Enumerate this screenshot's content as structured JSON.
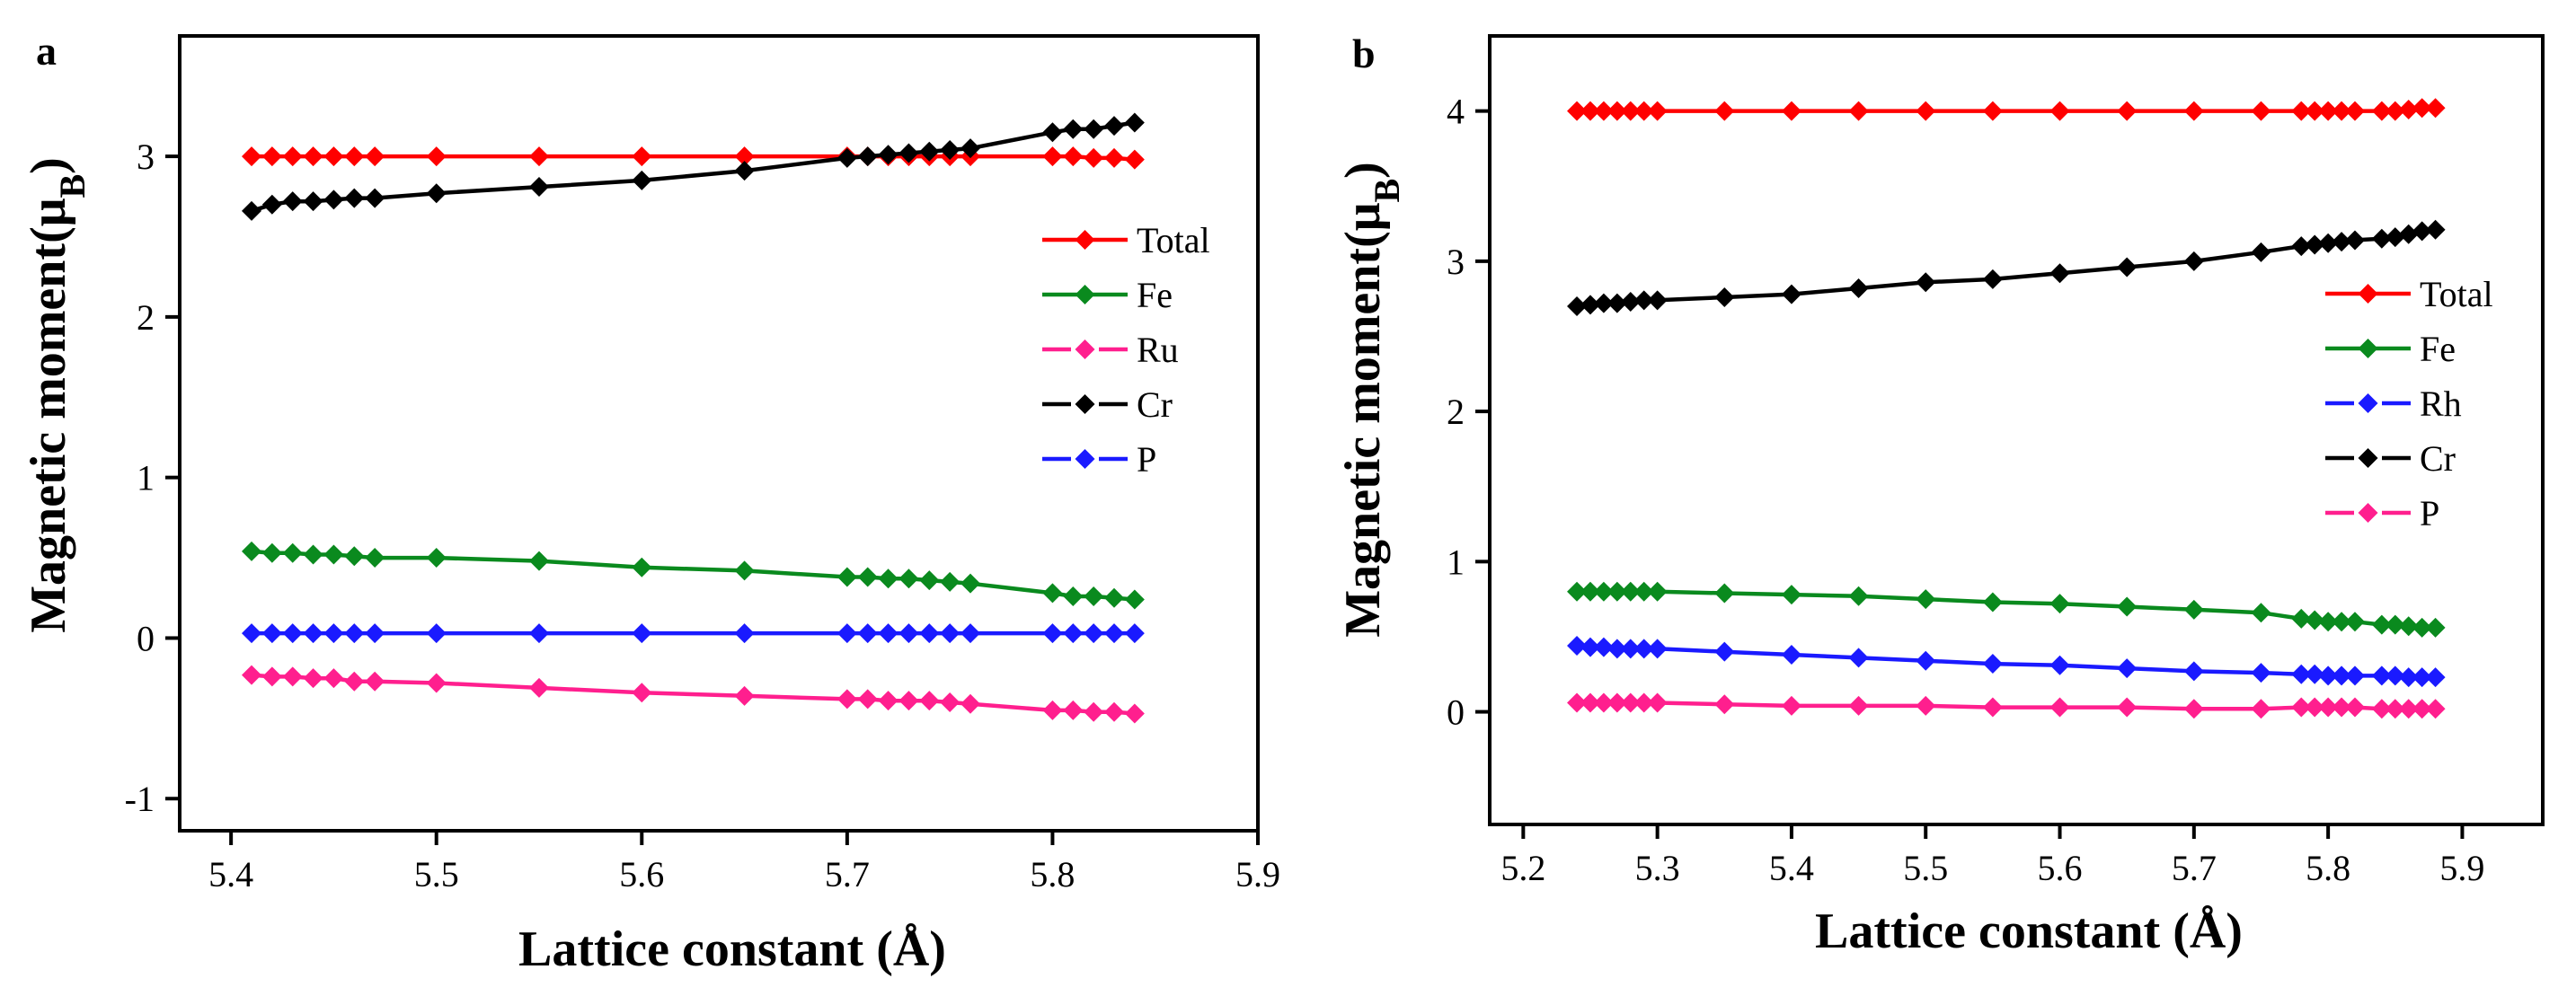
{
  "chart_data": [
    {
      "type": "line",
      "panel_label": "a",
      "xlabel": "Lattice constant (Å)",
      "ylabel_main": "Magnetic moment(μ",
      "ylabel_sub": "B",
      "ylabel_close": ")",
      "xlim": [
        5.375,
        5.9
      ],
      "ylim": [
        -1.2,
        3.75
      ],
      "x_ticks": [
        5.4,
        5.5,
        5.6,
        5.7,
        5.8,
        5.9
      ],
      "x_tick_labels": [
        "5.4",
        "5.5",
        "5.6",
        "5.7",
        "5.8",
        "5.9"
      ],
      "y_ticks": [
        -1,
        0,
        1,
        2,
        3
      ],
      "y_tick_labels": [
        "-1",
        "0",
        "1",
        "2",
        "3"
      ],
      "grid": false,
      "legend_position": "right",
      "x": [
        5.41,
        5.42,
        5.43,
        5.44,
        5.45,
        5.46,
        5.47,
        5.5,
        5.55,
        5.6,
        5.65,
        5.7,
        5.71,
        5.72,
        5.73,
        5.74,
        5.75,
        5.76,
        5.8,
        5.81,
        5.82,
        5.83,
        5.84
      ],
      "series": [
        {
          "name": "Total",
          "color": "#ff0000",
          "dashed": false,
          "values": [
            3.0,
            3.0,
            3.0,
            3.0,
            3.0,
            3.0,
            3.0,
            3.0,
            3.0,
            3.0,
            3.0,
            3.0,
            3.0,
            3.0,
            3.0,
            3.0,
            3.0,
            3.0,
            3.0,
            3.0,
            2.99,
            2.99,
            2.98
          ]
        },
        {
          "name": "Fe",
          "color": "#0a8a1e",
          "dashed": false,
          "values": [
            0.54,
            0.53,
            0.53,
            0.52,
            0.52,
            0.51,
            0.5,
            0.5,
            0.48,
            0.44,
            0.42,
            0.38,
            0.38,
            0.37,
            0.37,
            0.36,
            0.35,
            0.34,
            0.28,
            0.26,
            0.26,
            0.25,
            0.24
          ]
        },
        {
          "name": "Ru",
          "color": "#ff1f8e",
          "dashed": true,
          "values": [
            -0.23,
            -0.24,
            -0.24,
            -0.25,
            -0.25,
            -0.27,
            -0.27,
            -0.28,
            -0.31,
            -0.34,
            -0.36,
            -0.38,
            -0.38,
            -0.39,
            -0.39,
            -0.39,
            -0.4,
            -0.41,
            -0.45,
            -0.45,
            -0.46,
            -0.46,
            -0.47
          ]
        },
        {
          "name": "Cr",
          "color": "#000000",
          "dashed": true,
          "values": [
            2.66,
            2.7,
            2.72,
            2.72,
            2.73,
            2.74,
            2.74,
            2.77,
            2.81,
            2.85,
            2.91,
            2.99,
            3.0,
            3.01,
            3.02,
            3.03,
            3.04,
            3.05,
            3.15,
            3.17,
            3.17,
            3.19,
            3.21
          ]
        },
        {
          "name": "P",
          "color": "#1a1aff",
          "dashed": true,
          "values": [
            0.03,
            0.03,
            0.03,
            0.03,
            0.03,
            0.03,
            0.03,
            0.03,
            0.03,
            0.03,
            0.03,
            0.03,
            0.03,
            0.03,
            0.03,
            0.03,
            0.03,
            0.03,
            0.03,
            0.03,
            0.03,
            0.03,
            0.03
          ]
        }
      ]
    },
    {
      "type": "line",
      "panel_label": "b",
      "xlabel": "Lattice constant (Å)",
      "ylabel_main": "Magnetic moment(μ",
      "ylabel_sub": "B",
      "ylabel_close": ")",
      "xlim": [
        5.175,
        5.96
      ],
      "ylim": [
        -0.75,
        4.5
      ],
      "x_ticks": [
        5.2,
        5.3,
        5.4,
        5.5,
        5.6,
        5.7,
        5.8,
        5.9
      ],
      "x_tick_labels": [
        "5.2",
        "5.3",
        "5.4",
        "5.5",
        "5.6",
        "5.7",
        "5.8",
        "5.9"
      ],
      "y_ticks": [
        0,
        1,
        2,
        3,
        4
      ],
      "y_tick_labels": [
        "0",
        "1",
        "2",
        "3",
        "4"
      ],
      "grid": false,
      "legend_position": "right",
      "x": [
        5.24,
        5.25,
        5.26,
        5.27,
        5.28,
        5.29,
        5.3,
        5.35,
        5.4,
        5.45,
        5.5,
        5.55,
        5.6,
        5.65,
        5.7,
        5.75,
        5.78,
        5.79,
        5.8,
        5.81,
        5.82,
        5.84,
        5.85,
        5.86,
        5.87,
        5.88
      ],
      "series": [
        {
          "name": "Total",
          "color": "#ff0000",
          "dashed": false,
          "values": [
            4.0,
            4.0,
            4.0,
            4.0,
            4.0,
            4.0,
            4.0,
            4.0,
            4.0,
            4.0,
            4.0,
            4.0,
            4.0,
            4.0,
            4.0,
            4.0,
            4.0,
            4.0,
            4.0,
            4.0,
            4.0,
            4.0,
            4.0,
            4.01,
            4.02,
            4.02
          ]
        },
        {
          "name": "Fe",
          "color": "#0a8a1e",
          "dashed": false,
          "values": [
            0.8,
            0.8,
            0.8,
            0.8,
            0.8,
            0.8,
            0.8,
            0.79,
            0.78,
            0.77,
            0.75,
            0.73,
            0.72,
            0.7,
            0.68,
            0.66,
            0.62,
            0.61,
            0.6,
            0.6,
            0.6,
            0.58,
            0.58,
            0.57,
            0.56,
            0.56
          ]
        },
        {
          "name": "Rh",
          "color": "#1a1aff",
          "dashed": true,
          "values": [
            0.44,
            0.43,
            0.43,
            0.42,
            0.42,
            0.42,
            0.42,
            0.4,
            0.38,
            0.36,
            0.34,
            0.32,
            0.31,
            0.29,
            0.27,
            0.26,
            0.25,
            0.25,
            0.24,
            0.24,
            0.24,
            0.24,
            0.24,
            0.23,
            0.23,
            0.23
          ]
        },
        {
          "name": "Cr",
          "color": "#000000",
          "dashed": true,
          "values": [
            2.7,
            2.71,
            2.72,
            2.72,
            2.73,
            2.74,
            2.74,
            2.76,
            2.78,
            2.82,
            2.86,
            2.88,
            2.92,
            2.96,
            3.0,
            3.06,
            3.1,
            3.11,
            3.12,
            3.13,
            3.14,
            3.15,
            3.16,
            3.18,
            3.2,
            3.21
          ]
        },
        {
          "name": "P",
          "color": "#ff1f8e",
          "dashed": true,
          "values": [
            0.06,
            0.06,
            0.06,
            0.06,
            0.06,
            0.06,
            0.06,
            0.05,
            0.04,
            0.04,
            0.04,
            0.03,
            0.03,
            0.03,
            0.02,
            0.02,
            0.03,
            0.03,
            0.03,
            0.03,
            0.03,
            0.02,
            0.02,
            0.02,
            0.02,
            0.02
          ]
        }
      ]
    }
  ]
}
